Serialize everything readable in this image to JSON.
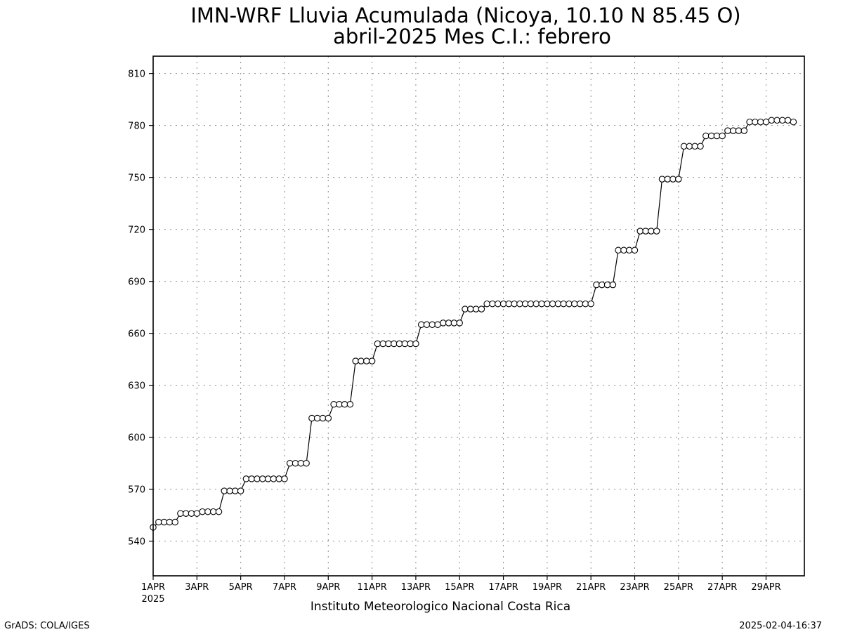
{
  "chart_data": {
    "type": "line",
    "title": "IMN-WRF  Lluvia Acumulada (Nicoya, 10.10  N 85.45  O)",
    "subtitle": "abril-2025 Mes C.I.: febrero",
    "xlabel": "",
    "ylabel": "",
    "ylim": [
      520,
      820
    ],
    "yticks": [
      540,
      570,
      600,
      630,
      660,
      690,
      720,
      750,
      780,
      810
    ],
    "x_range_days": [
      1,
      30.75
    ],
    "xtick_labels": [
      {
        "day": 1,
        "label": "1APR",
        "sublabel": "2025"
      },
      {
        "day": 3,
        "label": "3APR"
      },
      {
        "day": 5,
        "label": "5APR"
      },
      {
        "day": 7,
        "label": "7APR"
      },
      {
        "day": 9,
        "label": "9APR"
      },
      {
        "day": 11,
        "label": "11APR"
      },
      {
        "day": 13,
        "label": "13APR"
      },
      {
        "day": 15,
        "label": "15APR"
      },
      {
        "day": 17,
        "label": "17APR"
      },
      {
        "day": 19,
        "label": "19APR"
      },
      {
        "day": 21,
        "label": "21APR"
      },
      {
        "day": 23,
        "label": "23APR"
      },
      {
        "day": 25,
        "label": "25APR"
      },
      {
        "day": 27,
        "label": "27APR"
      },
      {
        "day": 29,
        "label": "29APR"
      }
    ],
    "grid": true,
    "marker": "open-circle",
    "daily_values": [
      [
        548,
        551,
        551,
        551
      ],
      [
        551,
        556,
        556,
        556
      ],
      [
        556,
        557,
        557,
        557
      ],
      [
        557,
        569,
        569,
        569
      ],
      [
        569,
        576,
        576,
        576
      ],
      [
        576,
        576,
        576,
        576
      ],
      [
        576,
        585,
        585,
        585
      ],
      [
        585,
        611,
        611,
        611
      ],
      [
        611,
        619,
        619,
        619
      ],
      [
        619,
        644,
        644,
        644
      ],
      [
        644,
        654,
        654,
        654
      ],
      [
        654,
        654,
        654,
        654
      ],
      [
        654,
        665,
        665,
        665
      ],
      [
        665,
        666,
        666,
        666
      ],
      [
        666,
        674,
        674,
        674
      ],
      [
        674,
        677,
        677,
        677
      ],
      [
        677,
        677,
        677,
        677
      ],
      [
        677,
        677,
        677,
        677
      ],
      [
        677,
        677,
        677,
        677
      ],
      [
        677,
        677,
        677,
        677
      ],
      [
        677,
        688,
        688,
        688
      ],
      [
        688,
        708,
        708,
        708
      ],
      [
        708,
        719,
        719,
        719
      ],
      [
        719,
        749,
        749,
        749
      ],
      [
        749,
        768,
        768,
        768
      ],
      [
        768,
        774,
        774,
        774
      ],
      [
        774,
        777,
        777,
        777
      ],
      [
        777,
        782,
        782,
        782
      ],
      [
        782,
        783,
        783,
        783
      ],
      [
        783,
        782
      ]
    ],
    "colors": {
      "line": "#000000",
      "grid": "#8c8c8c",
      "marker_fill": "#ffffff",
      "axis": "#000000"
    }
  },
  "footer": {
    "institution": "Instituto Meteorologico Nacional Costa Rica",
    "left": "GrADS: COLA/IGES",
    "right": "2025-02-04-16:37"
  }
}
